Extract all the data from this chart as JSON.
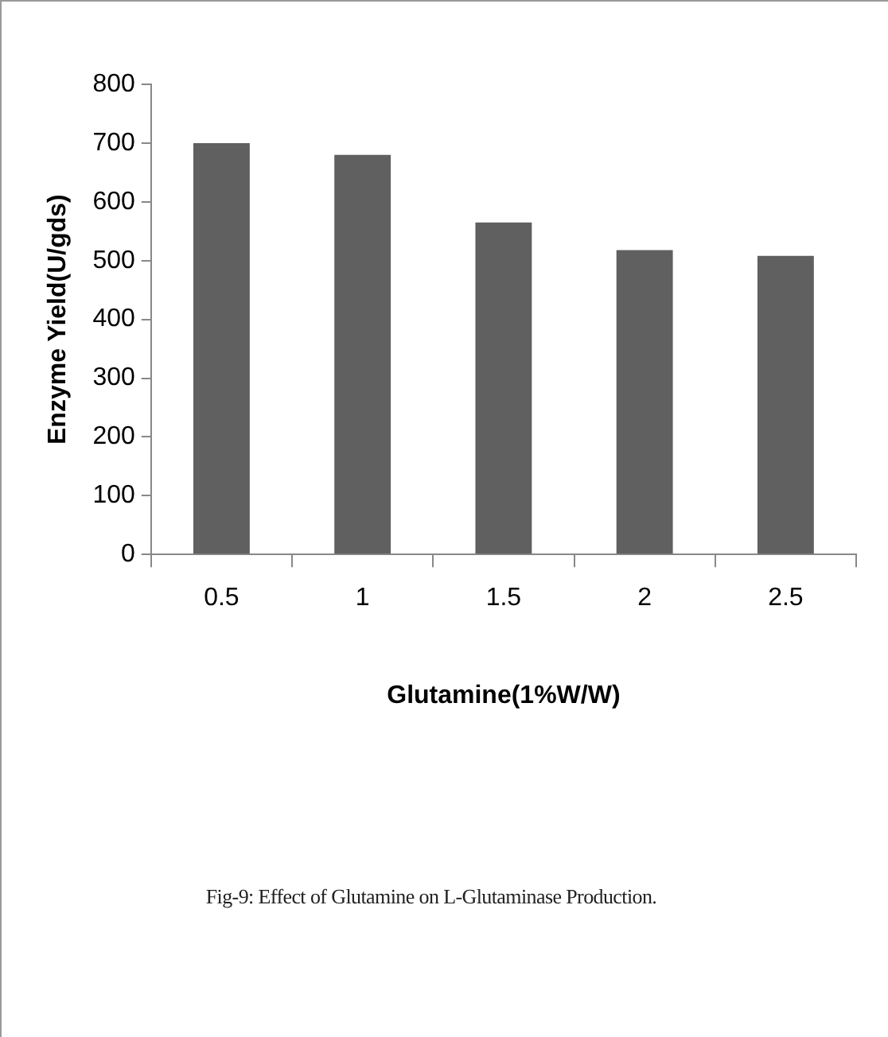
{
  "chart_data": {
    "type": "bar",
    "categories": [
      "0.5",
      "1",
      "1.5",
      "2",
      "2.5"
    ],
    "values": [
      700,
      680,
      565,
      518,
      508
    ],
    "color": "#606060",
    "xlabel": "Glutamine(1%W/W)",
    "ylabel": "Enzyme Yield(U/gds)",
    "ylim": [
      0,
      800
    ],
    "yticks": [
      0,
      100,
      200,
      300,
      400,
      500,
      600,
      700,
      800
    ],
    "grid": false,
    "legend": false,
    "annotations": [
      "Fig-9: Effect of Glutamine on L-Glutaminase Production."
    ]
  }
}
